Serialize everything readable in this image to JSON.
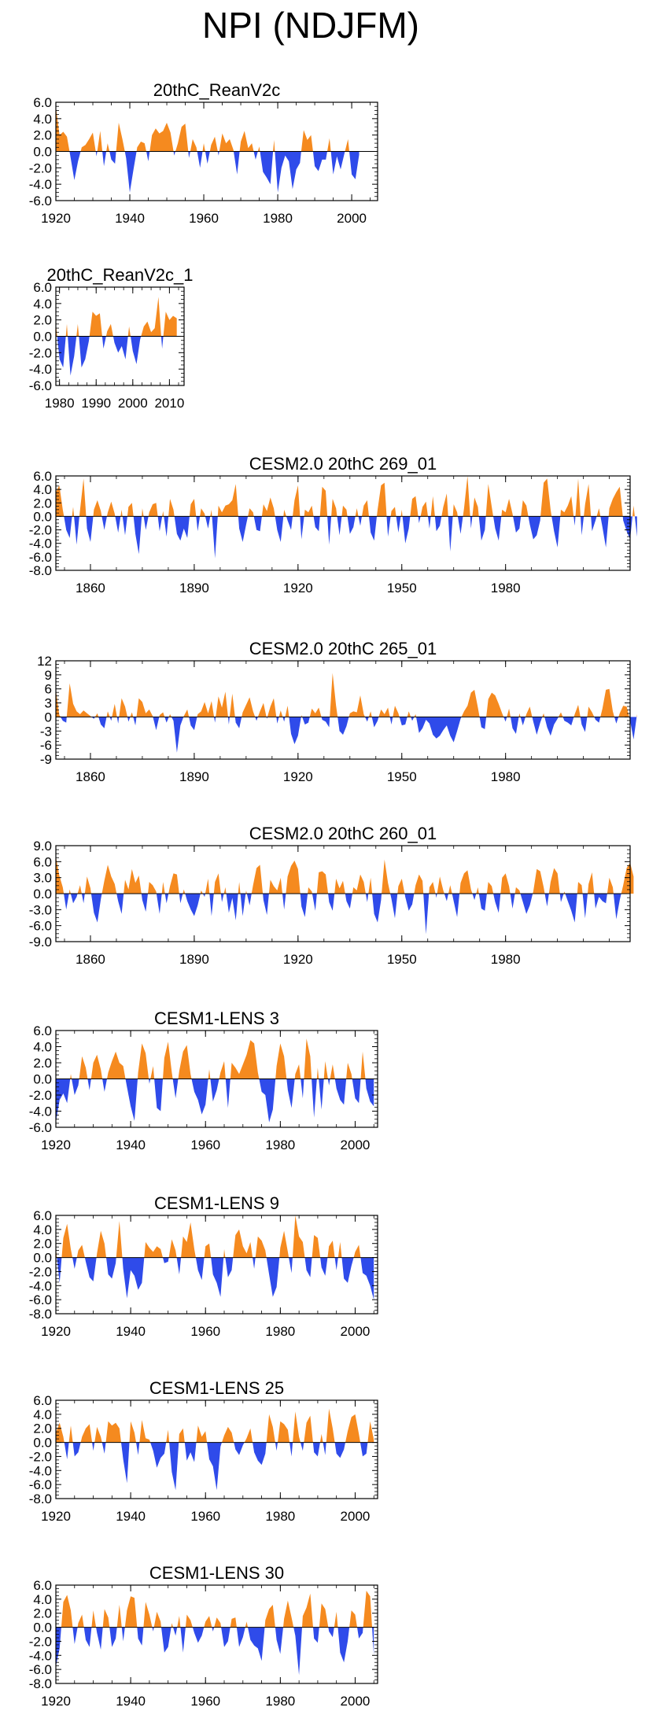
{
  "page_title": "NPI (NDJFM)",
  "colors": {
    "positive": "#f58a1f",
    "negative": "#2f4bea",
    "axis": "#000000"
  },
  "chart_data": [
    {
      "type": "area",
      "title": "20thC_ReanV2c",
      "xlim": [
        1920,
        2007
      ],
      "ylim": [
        -6.0,
        6.0
      ],
      "yticks": [
        -6.0,
        -4.0,
        -2.0,
        0.0,
        2.0,
        4.0,
        6.0
      ],
      "ytick_labels": [
        "-6.0",
        "-4.0",
        "-2.0",
        "0.0",
        "2.0",
        "4.0",
        "6.0"
      ],
      "xticks": [
        1920,
        1940,
        1960,
        1980,
        2000
      ],
      "xtick_labels": [
        "1920",
        "1940",
        "1960",
        "1980",
        "2000"
      ],
      "x_start": 1920,
      "values": [
        5.5,
        2.0,
        2.4,
        1.8,
        -0.8,
        -3.5,
        -1.2,
        0.5,
        0.8,
        1.5,
        2.3,
        -0.6,
        2.5,
        -1.8,
        1.0,
        -1.0,
        -1.5,
        3.5,
        1.5,
        -0.8,
        -5.0,
        -2.2,
        0.5,
        1.2,
        1.0,
        -1.2,
        2.0,
        2.8,
        2.2,
        2.5,
        3.5,
        2.3,
        -0.5,
        1.0,
        3.0,
        3.4,
        -0.8,
        1.5,
        0.5,
        -2.0,
        1.0,
        -1.5,
        0.8,
        1.8,
        -0.5,
        2.2,
        1.0,
        1.5,
        0.2,
        -2.8,
        1.2,
        2.5,
        0.4,
        1.0,
        -1.0,
        0.6,
        -2.5,
        -3.2,
        -4.0,
        1.4,
        -5.0,
        -2.0,
        -0.5,
        -1.2,
        -4.6,
        -2.2,
        -1.4,
        2.6,
        1.4,
        2.0,
        -1.8,
        -2.4,
        -1.0,
        -1.0,
        1.6,
        -2.8,
        -0.6,
        -2.2,
        -0.3,
        1.5,
        -2.8,
        -3.4,
        -0.4
      ]
    },
    {
      "type": "area",
      "title": "20thC_ReanV2c_1",
      "xlim": [
        1979,
        2014
      ],
      "ylim": [
        -6.0,
        6.0
      ],
      "yticks": [
        -6.0,
        -4.0,
        -2.0,
        0.0,
        2.0,
        4.0,
        6.0
      ],
      "ytick_labels": [
        "-6.0",
        "-4.0",
        "-2.0",
        "0.0",
        "2.0",
        "4.0",
        "6.0"
      ],
      "xticks": [
        1980,
        1990,
        2000,
        2010
      ],
      "xtick_labels": [
        "1980",
        "1990",
        "2000",
        "2010"
      ],
      "x_start": 1979,
      "values": [
        1.6,
        -2.8,
        -3.8,
        1.5,
        -4.8,
        -2.4,
        1.5,
        -3.8,
        -2.8,
        -0.6,
        3.0,
        2.5,
        2.8,
        -1.5,
        0.6,
        1.5,
        -0.8,
        -2.0,
        -1.2,
        -2.8,
        1.2,
        -1.8,
        -3.4,
        -0.4,
        1.2,
        1.8,
        0.5,
        1.0,
        4.8,
        -1.5,
        3.0,
        2.0,
        2.5,
        2.2
      ]
    },
    {
      "type": "area",
      "title": "CESM2.0 20thC 269_01",
      "xlim": [
        1850,
        2016
      ],
      "ylim": [
        -8.0,
        6.0
      ],
      "yticks": [
        -8.0,
        -6.0,
        -4.0,
        -2.0,
        0.0,
        2.0,
        4.0,
        6.0
      ],
      "ytick_labels": [
        "-8.0",
        "-6.0",
        "-4.0",
        "-2.0",
        "0.0",
        "2.0",
        "4.0",
        "6.0"
      ],
      "xticks": [
        1860,
        1890,
        1920,
        1950,
        1980
      ],
      "xtick_labels": [
        "1860",
        "1890",
        "1920",
        "1950",
        "1980"
      ],
      "x_start": 1850,
      "values": [
        3.6,
        4.6,
        1.0,
        -2.0,
        -3.2,
        1.4,
        -4.2,
        1.0,
        5.6,
        -1.8,
        -3.8,
        1.0,
        2.4,
        0.8,
        -2.0,
        0.6,
        2.2,
        0.4,
        -2.4,
        1.0,
        -2.8,
        1.4,
        2.0,
        -2.6,
        -5.6,
        1.2,
        -2.0,
        0.6,
        1.8,
        2.0,
        -2.2,
        0.8,
        -3.0,
        2.6,
        1.0,
        -2.6,
        -3.6,
        -1.8,
        -3.2,
        1.8,
        2.6,
        -2.2,
        1.2,
        0.4,
        -1.8,
        1.0,
        -6.2,
        1.6,
        0.6,
        1.6,
        1.8,
        2.4,
        4.8,
        -1.8,
        -3.8,
        -1.2,
        1.2,
        0.6,
        -2.0,
        -2.2,
        1.8,
        0.8,
        2.8,
        1.2,
        -2.0,
        -3.8,
        1.0,
        -0.6,
        -2.0,
        2.4,
        4.6,
        -3.4,
        1.0,
        0.6,
        1.6,
        -1.6,
        -2.2,
        4.4,
        3.8,
        -4.2,
        2.6,
        1.2,
        -2.8,
        1.6,
        1.0,
        -2.6,
        -1.6,
        1.2,
        -1.4,
        1.6,
        2.4,
        -2.4,
        -3.6,
        1.0,
        4.6,
        5.0,
        -3.0,
        0.8,
        1.4,
        -2.4,
        1.0,
        -4.0,
        -1.8,
        2.6,
        3.0,
        -1.0,
        1.4,
        2.2,
        -1.8,
        3.0,
        -2.2,
        -1.4,
        1.4,
        3.4,
        -5.2,
        1.8,
        0.6,
        -2.6,
        1.2,
        6.0,
        -1.8,
        2.8,
        1.4,
        -3.6,
        -2.0,
        4.8,
        1.4,
        -1.8,
        -3.6,
        1.0,
        0.6,
        2.6,
        0.4,
        -2.4,
        -1.8,
        2.4,
        1.6,
        -1.2,
        -3.4,
        -2.8,
        -0.6,
        5.0,
        5.6,
        1.0,
        -2.2,
        -4.6,
        1.0,
        0.6,
        1.6,
        3.0,
        -1.4,
        5.6,
        -2.8,
        1.8,
        4.8,
        -2.2,
        -0.6,
        1.2,
        -1.6,
        -4.6,
        1.2,
        2.6,
        3.6,
        4.4,
        -0.6,
        -2.2,
        -3.4,
        1.6,
        -3.0
      ]
    },
    {
      "type": "area",
      "title": "CESM2.0 20thC 265_01",
      "xlim": [
        1850,
        2016
      ],
      "ylim": [
        -9,
        12
      ],
      "yticks": [
        -9,
        -6,
        -3,
        0,
        3,
        6,
        9,
        12
      ],
      "ytick_labels": [
        "-9",
        "-6",
        "-3",
        "0",
        "3",
        "6",
        "9",
        "12"
      ],
      "xticks": [
        1860,
        1890,
        1920,
        1950,
        1980
      ],
      "xtick_labels": [
        "1860",
        "1890",
        "1920",
        "1950",
        "1980"
      ],
      "x_start": 1850,
      "values": [
        5.8,
        0.4,
        -0.8,
        -1.2,
        7.2,
        2.8,
        1.2,
        0.6,
        1.4,
        0.8,
        0.2,
        -0.4,
        0.8,
        -1.6,
        -2.4,
        1.2,
        -0.8,
        2.8,
        -1.4,
        4.0,
        2.2,
        -1.0,
        1.0,
        -1.8,
        4.0,
        3.2,
        0.8,
        1.6,
        0.2,
        -2.8,
        0.4,
        1.0,
        -1.2,
        0.6,
        -0.8,
        -7.6,
        -1.8,
        0.2,
        1.6,
        -1.8,
        -2.8,
        0.6,
        1.2,
        3.2,
        0.8,
        3.4,
        -1.2,
        4.4,
        2.0,
        5.4,
        -1.6,
        5.0,
        -1.2,
        -2.4,
        1.0,
        2.6,
        4.2,
        1.2,
        -0.8,
        1.2,
        3.0,
        -0.4,
        2.2,
        4.0,
        -1.4,
        1.4,
        -1.0,
        2.4,
        -3.6,
        -5.8,
        -4.0,
        0.4,
        -1.6,
        -1.2,
        1.8,
        0.8,
        2.0,
        -0.6,
        -1.0,
        -2.2,
        9.4,
        2.4,
        -3.0,
        -3.8,
        -2.0,
        0.8,
        1.2,
        1.0,
        4.6,
        0.6,
        -1.0,
        1.2,
        -2.2,
        -0.8,
        1.6,
        0.6,
        2.0,
        -1.6,
        2.4,
        0.8,
        -1.8,
        -1.6,
        1.2,
        -0.8,
        0.6,
        -3.4,
        -2.4,
        -0.6,
        -1.4,
        -3.8,
        -4.6,
        -4.0,
        -2.8,
        -1.8,
        -4.0,
        -5.4,
        -3.0,
        -0.4,
        1.2,
        2.4,
        5.2,
        5.8,
        2.0,
        -2.2,
        -2.6,
        3.8,
        5.2,
        4.6,
        2.8,
        0.8,
        -1.0,
        1.8,
        -2.4,
        -3.6,
        0.8,
        -1.8,
        0.6,
        2.2,
        -1.0,
        -3.8,
        -1.2,
        0.8,
        -2.2,
        -4.0,
        -1.6,
        -0.4,
        1.0,
        -0.8,
        -1.2,
        -1.8,
        0.6,
        2.6,
        -1.6,
        -3.2,
        2.2,
        1.0,
        -0.6,
        -1.2,
        1.8,
        5.8,
        6.0,
        1.2,
        -1.4,
        0.8,
        2.4,
        2.2,
        -0.8,
        -4.8,
        0.6
      ]
    },
    {
      "type": "area",
      "title": "CESM2.0 20thC 260_01",
      "xlim": [
        1850,
        2016
      ],
      "ylim": [
        -9.0,
        9.0
      ],
      "yticks": [
        -9.0,
        -6.0,
        -3.0,
        0.0,
        3.0,
        6.0,
        9.0
      ],
      "ytick_labels": [
        "-9.0",
        "-6.0",
        "-3.0",
        "0.0",
        "3.0",
        "6.0",
        "9.0"
      ],
      "xticks": [
        1860,
        1890,
        1920,
        1950,
        1980
      ],
      "xtick_labels": [
        "1860",
        "1890",
        "1920",
        "1950",
        "1980"
      ],
      "x_start": 1850,
      "values": [
        7.0,
        3.4,
        1.2,
        -3.0,
        0.8,
        -1.8,
        -0.6,
        1.6,
        -1.8,
        3.2,
        1.0,
        -3.6,
        -5.4,
        -1.0,
        2.4,
        5.4,
        3.2,
        1.8,
        -1.4,
        -3.8,
        2.6,
        0.8,
        4.6,
        2.0,
        3.4,
        -1.2,
        -3.4,
        2.2,
        1.6,
        0.4,
        -3.8,
        2.2,
        -1.8,
        1.4,
        3.8,
        3.6,
        -1.8,
        0.8,
        -1.4,
        -3.0,
        -4.2,
        -2.2,
        0.6,
        -0.6,
        2.8,
        -4.2,
        2.2,
        3.8,
        -1.6,
        1.2,
        -3.6,
        -0.8,
        -5.0,
        2.2,
        -4.2,
        0.6,
        -2.2,
        1.6,
        4.8,
        5.4,
        -1.2,
        -4.0,
        2.6,
        1.4,
        0.6,
        3.0,
        -3.0,
        3.2,
        5.2,
        6.2,
        4.6,
        -2.4,
        -4.4,
        1.2,
        0.4,
        -3.2,
        4.0,
        4.2,
        3.6,
        -1.6,
        -3.2,
        2.8,
        1.0,
        2.4,
        -1.4,
        -2.8,
        1.2,
        0.6,
        3.6,
        2.2,
        -1.6,
        3.0,
        -3.8,
        -5.4,
        -1.2,
        6.4,
        2.0,
        -1.0,
        -4.6,
        1.4,
        2.8,
        -0.6,
        -3.2,
        -2.0,
        1.6,
        3.6,
        2.4,
        -7.6,
        1.2,
        2.2,
        -0.8,
        3.2,
        0.6,
        -1.4,
        1.6,
        -1.4,
        -4.4,
        2.0,
        3.8,
        4.4,
        0.8,
        -1.2,
        1.2,
        -2.8,
        -3.2,
        2.2,
        1.4,
        -1.6,
        -3.6,
        3.0,
        3.8,
        1.4,
        -2.8,
        1.2,
        0.6,
        -1.6,
        -3.8,
        -2.2,
        0.4,
        4.6,
        4.2,
        1.2,
        -2.4,
        2.2,
        4.8,
        3.8,
        -1.6,
        0.4,
        -1.4,
        -3.2,
        -5.4,
        2.2,
        1.6,
        -4.6,
        1.8,
        4.0,
        -2.8,
        -0.6,
        -1.4,
        -1.8,
        3.0,
        1.2,
        -4.8,
        -1.2,
        1.6,
        4.8,
        5.8,
        3.2
      ]
    },
    {
      "type": "area",
      "title": "CESM1-LENS 3",
      "xlim": [
        1920,
        2006
      ],
      "ylim": [
        -6.0,
        6.0
      ],
      "yticks": [
        -6.0,
        -4.0,
        -2.0,
        0.0,
        2.0,
        4.0,
        6.0
      ],
      "ytick_labels": [
        "-6.0",
        "-4.0",
        "-2.0",
        "0.0",
        "2.0",
        "4.0",
        "6.0"
      ],
      "xticks": [
        1920,
        1940,
        1960,
        1980,
        2000
      ],
      "xtick_labels": [
        "1920",
        "1940",
        "1960",
        "1980",
        "2000"
      ],
      "x_start": 1920,
      "values": [
        -5.4,
        -2.6,
        -1.8,
        -3.0,
        0.6,
        -2.0,
        -0.8,
        2.8,
        1.4,
        -1.4,
        2.0,
        3.0,
        1.2,
        -1.6,
        0.8,
        2.2,
        3.4,
        2.0,
        1.6,
        -1.0,
        -3.4,
        -5.2,
        0.8,
        4.4,
        3.2,
        -0.6,
        1.6,
        -3.6,
        -4.0,
        2.6,
        4.6,
        0.8,
        -2.4,
        1.0,
        3.4,
        4.2,
        0.6,
        -1.6,
        -2.6,
        -4.4,
        -3.2,
        1.2,
        -2.8,
        -1.4,
        0.8,
        2.2,
        -3.6,
        2.0,
        1.4,
        0.6,
        1.8,
        3.0,
        4.8,
        4.4,
        0.8,
        -1.6,
        -2.0,
        -5.4,
        -3.8,
        1.6,
        4.4,
        2.8,
        -1.4,
        -3.6,
        0.6,
        1.8,
        -2.4,
        5.0,
        2.8,
        -4.8,
        1.4,
        -3.8,
        2.2,
        -0.8,
        1.8,
        -1.2,
        -2.6,
        -3.2,
        2.0,
        0.6,
        -2.4,
        -3.0,
        3.4,
        -1.2,
        -2.8,
        -3.4
      ]
    },
    {
      "type": "area",
      "title": "CESM1-LENS 9",
      "xlim": [
        1920,
        2006
      ],
      "ylim": [
        -8.0,
        6.0
      ],
      "yticks": [
        -8.0,
        -6.0,
        -4.0,
        -2.0,
        0.0,
        2.0,
        4.0,
        6.0
      ],
      "ytick_labels": [
        "-8.0",
        "-6.0",
        "-4.0",
        "-2.0",
        "0.0",
        "2.0",
        "4.0",
        "6.0"
      ],
      "xticks": [
        1920,
        1940,
        1960,
        1980,
        2000
      ],
      "xtick_labels": [
        "1920",
        "1940",
        "1960",
        "1980",
        "2000"
      ],
      "x_start": 1920,
      "values": [
        1.4,
        -3.6,
        2.8,
        4.8,
        1.2,
        -1.6,
        1.0,
        1.8,
        -0.6,
        -2.8,
        -3.4,
        0.6,
        3.8,
        2.0,
        -2.4,
        -3.0,
        -0.8,
        5.2,
        -1.6,
        -5.8,
        -1.8,
        -2.6,
        -4.6,
        -3.6,
        2.2,
        1.4,
        0.8,
        1.6,
        1.2,
        -0.8,
        -0.6,
        2.6,
        1.0,
        -2.4,
        3.0,
        2.2,
        5.0,
        1.2,
        -1.8,
        -3.2,
        1.6,
        2.0,
        -2.4,
        -3.6,
        -5.6,
        1.2,
        -2.8,
        -1.8,
        3.2,
        4.0,
        1.6,
        0.6,
        2.2,
        -1.6,
        3.0,
        2.4,
        1.0,
        -2.4,
        -5.6,
        -4.2,
        1.4,
        3.8,
        0.8,
        -2.2,
        6.0,
        3.0,
        2.2,
        -1.8,
        -2.8,
        3.2,
        2.8,
        -1.4,
        -2.6,
        1.6,
        2.4,
        -1.8,
        2.2,
        -3.0,
        -3.6,
        -1.2,
        0.8,
        1.8,
        -2.2,
        -2.6,
        -4.0,
        -6.0
      ]
    },
    {
      "type": "area",
      "title": "CESM1-LENS 25",
      "xlim": [
        1920,
        2006
      ],
      "ylim": [
        -8.0,
        6.0
      ],
      "yticks": [
        -8.0,
        -6.0,
        -4.0,
        -2.0,
        0.0,
        2.0,
        4.0,
        6.0
      ],
      "ytick_labels": [
        "-8.0",
        "-6.0",
        "-4.0",
        "-2.0",
        "0.0",
        "2.0",
        "4.0",
        "6.0"
      ],
      "xticks": [
        1920,
        1940,
        1960,
        1980,
        2000
      ],
      "xtick_labels": [
        "1920",
        "1940",
        "1960",
        "1980",
        "2000"
      ],
      "x_start": 1920,
      "values": [
        1.4,
        2.8,
        0.8,
        -2.4,
        2.4,
        -2.0,
        -1.4,
        0.8,
        2.0,
        2.6,
        -1.2,
        2.2,
        0.8,
        -1.6,
        3.0,
        2.4,
        2.8,
        2.0,
        -2.4,
        -5.8,
        3.0,
        1.4,
        -1.8,
        3.2,
        0.6,
        0.4,
        -1.2,
        -3.6,
        -2.2,
        -1.6,
        1.8,
        -4.2,
        -6.8,
        1.2,
        2.0,
        -2.6,
        -1.4,
        -2.8,
        2.4,
        0.8,
        1.6,
        -2.4,
        -3.4,
        -6.8,
        -0.6,
        1.0,
        2.2,
        1.4,
        -1.0,
        -1.8,
        -0.4,
        0.6,
        2.0,
        -1.4,
        -2.6,
        -3.2,
        -1.6,
        4.0,
        2.2,
        -1.2,
        3.0,
        2.6,
        1.8,
        -2.0,
        4.4,
        0.8,
        -1.2,
        2.8,
        3.8,
        -1.4,
        -2.0,
        1.2,
        -1.8,
        4.8,
        2.0,
        -1.6,
        -2.2,
        -1.0,
        1.6,
        3.6,
        4.0,
        1.2,
        -2.0,
        -1.6,
        3.0,
        0.4
      ]
    },
    {
      "type": "area",
      "title": "CESM1-LENS 30",
      "xlim": [
        1920,
        2006
      ],
      "ylim": [
        -8.0,
        6.0
      ],
      "yticks": [
        -8.0,
        -6.0,
        -4.0,
        -2.0,
        0.0,
        2.0,
        4.0,
        6.0
      ],
      "ytick_labels": [
        "-8.0",
        "-6.0",
        "-4.0",
        "-2.0",
        "0.0",
        "2.0",
        "4.0",
        "6.0"
      ],
      "xticks": [
        1920,
        1940,
        1960,
        1980,
        2000
      ],
      "xtick_labels": [
        "1920",
        "1940",
        "1960",
        "1980",
        "2000"
      ],
      "x_start": 1920,
      "values": [
        -5.6,
        -3.0,
        3.6,
        4.6,
        2.4,
        -2.4,
        0.6,
        1.8,
        -1.8,
        -2.8,
        2.4,
        -0.8,
        -3.2,
        2.6,
        1.4,
        -2.8,
        -1.6,
        3.2,
        -2.0,
        2.4,
        4.4,
        4.2,
        -1.6,
        -2.6,
        3.6,
        1.8,
        -0.6,
        2.2,
        0.8,
        -3.6,
        -2.8,
        0.6,
        -1.2,
        1.6,
        -3.6,
        1.8,
        1.0,
        -0.8,
        -2.2,
        -1.2,
        0.8,
        1.6,
        -0.6,
        1.4,
        0.6,
        -2.8,
        -2.0,
        1.2,
        1.4,
        -2.8,
        -1.4,
        0.8,
        -1.8,
        -2.6,
        -3.0,
        -4.8,
        1.0,
        2.6,
        3.2,
        -1.8,
        -3.8,
        1.2,
        3.8,
        1.4,
        -1.2,
        -6.8,
        1.6,
        2.8,
        4.8,
        -1.6,
        -2.2,
        3.4,
        2.6,
        -0.6,
        -1.4,
        2.2,
        -3.6,
        -5.0,
        -2.0,
        2.4,
        1.8,
        -1.6,
        -0.8,
        5.2,
        4.4,
        -4.0
      ]
    }
  ]
}
